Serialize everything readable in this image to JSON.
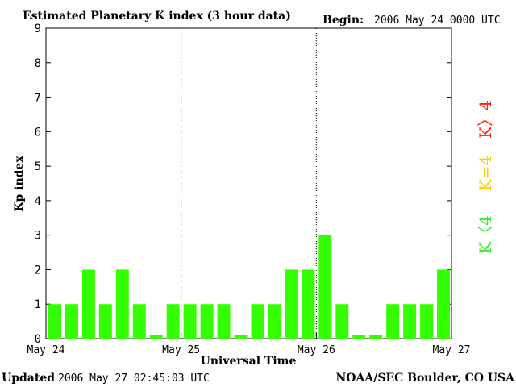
{
  "header": {
    "title": "Estimated Planetary K index (3 hour data)",
    "begin_label": "Begin:",
    "begin_value": "2006 May 24 0000 UTC"
  },
  "footer": {
    "updated_label": "Updated",
    "updated_value": "2006 May 27 02:45:03 UTC",
    "credit": "NOAA/SEC Boulder, CO USA"
  },
  "legend": {
    "high": {
      "label": "K〉4",
      "color": "#ff2200"
    },
    "equal": {
      "label": "K=4",
      "color": "#ffcc00"
    },
    "low": {
      "label": "K〈4",
      "color": "#33ee33"
    }
  },
  "chart_data": {
    "type": "bar",
    "title": "Estimated Planetary K index (3 hour data)",
    "xlabel": "Universal Time",
    "ylabel": "Kp index",
    "ylim": [
      0,
      9
    ],
    "yticks": [
      "0",
      "1",
      "2",
      "3",
      "4",
      "5",
      "6",
      "7",
      "8",
      "9"
    ],
    "day_labels": [
      "May 24",
      "May 25",
      "May 26",
      "May 27"
    ],
    "bar_color": "#33ff00",
    "values": [
      1,
      1,
      2,
      1,
      2,
      1,
      0.1,
      1,
      1,
      1,
      1,
      0.1,
      1,
      1,
      2,
      2,
      3,
      1,
      0.1,
      0.1,
      1,
      1,
      1,
      2
    ]
  }
}
